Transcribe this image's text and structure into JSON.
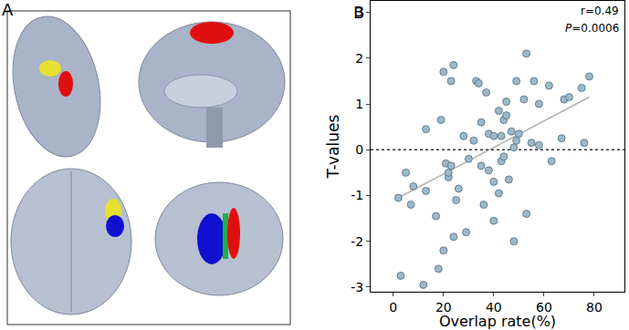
{
  "panel_a": {
    "label": "A"
  },
  "chart_data": {
    "type": "scatter",
    "annotations": [
      {
        "text": "B"
      },
      {
        "text": "r=0.49"
      },
      {
        "text": "P=0.0006"
      }
    ],
    "x_label": "Overlap rate(%)",
    "y_label": "T-values",
    "xlim": [
      -9,
      92
    ],
    "xticks": [
      0,
      20,
      40,
      60,
      80
    ],
    "ylim": [
      -3.1,
      3.25
    ],
    "yticks": [
      -3,
      -2,
      -1,
      0,
      1,
      2,
      3
    ],
    "grid": false,
    "series": [
      {
        "type": "scatter",
        "marker": "circle",
        "color": "#9db8c8",
        "x": [
          2,
          3,
          5,
          7,
          8,
          12,
          13,
          13,
          17,
          18,
          19,
          20,
          20,
          21,
          22,
          22,
          23,
          23,
          24,
          24,
          25,
          26,
          28,
          29,
          30,
          32,
          33,
          34,
          35,
          35,
          36,
          37,
          38,
          38,
          40,
          40,
          40,
          42,
          42,
          43,
          43,
          44,
          44,
          45,
          45,
          46,
          47,
          48,
          48,
          49,
          49,
          50,
          52,
          53,
          53,
          55,
          56,
          58,
          58,
          62,
          63,
          67,
          68,
          70,
          75,
          76,
          78
        ],
        "values": [
          -1.05,
          -2.75,
          -0.5,
          -1.2,
          -0.8,
          -2.95,
          0.45,
          -0.9,
          -1.45,
          -2.6,
          0.65,
          1.7,
          -2.2,
          -0.3,
          -0.6,
          -0.5,
          -0.35,
          1.5,
          1.85,
          -1.9,
          -1.1,
          -0.85,
          0.3,
          -1.8,
          -0.2,
          0.2,
          1.5,
          1.45,
          -0.35,
          0.6,
          -1.2,
          1.25,
          0.35,
          -0.45,
          0.3,
          -0.7,
          -1.55,
          0.85,
          -0.95,
          0.3,
          -0.25,
          -0.15,
          0.65,
          1.05,
          0.75,
          -0.65,
          0.4,
          -2.0,
          0.05,
          1.5,
          0.2,
          0.35,
          1.1,
          2.1,
          -1.4,
          0.15,
          1.5,
          0.1,
          1.0,
          1.4,
          -0.25,
          0.25,
          1.1,
          1.15,
          1.35,
          0.15,
          1.6
        ]
      },
      {
        "type": "line",
        "line_style": "solid",
        "color": "#b4b4b4",
        "x": [
          2,
          78
        ],
        "values": [
          -1.05,
          1.15
        ]
      },
      {
        "type": "line",
        "line_style": "dotted",
        "color": "#333333",
        "x": [
          -9,
          92
        ],
        "values": [
          0,
          0
        ]
      }
    ]
  }
}
